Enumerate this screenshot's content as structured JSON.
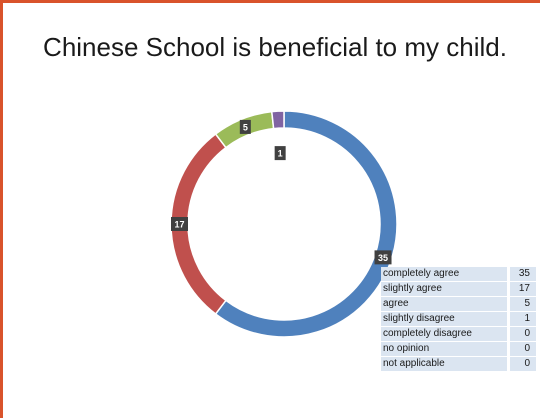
{
  "chart_data": {
    "type": "pie",
    "title": "Chinese School is beneficial to my child.",
    "categories": [
      "completely agree",
      "slightly agree",
      "agree",
      "slightly disagree",
      "completely disagree",
      "no opinion",
      "not applicable"
    ],
    "values": [
      35,
      17,
      5,
      1,
      0,
      0,
      0
    ],
    "colors": [
      "#4f81bd",
      "#c0504d",
      "#9bbb59",
      "#8064a2",
      "#4bacc6",
      "#f79646",
      "#2c4d75"
    ],
    "donut": true,
    "data_labels": true,
    "legend": "table, bottom-right"
  }
}
